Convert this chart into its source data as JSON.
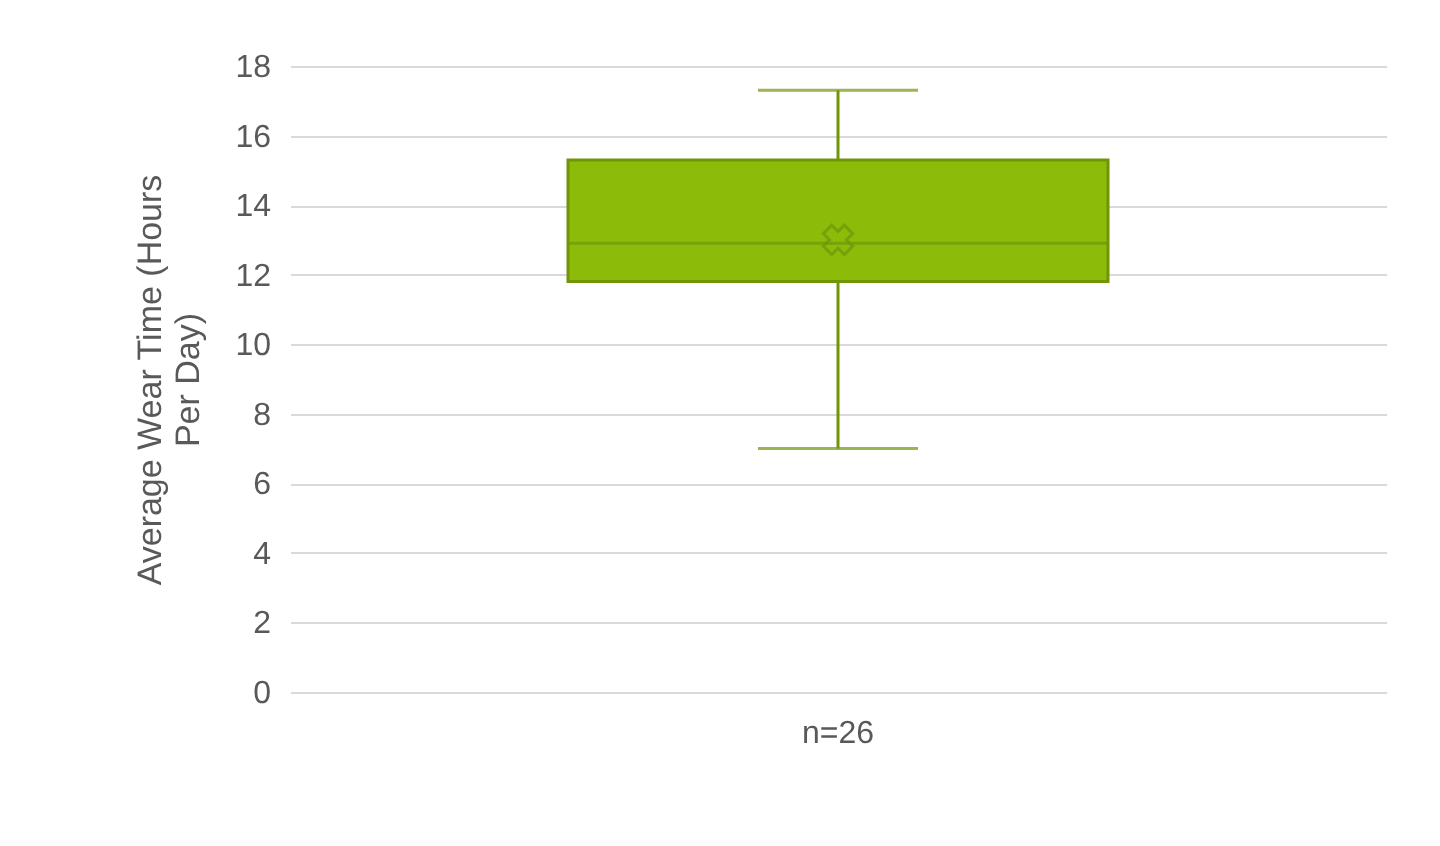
{
  "chart_data": {
    "type": "box",
    "ylabel": "Average Wear Time (Hours Per Day)",
    "categories": [
      "n=26"
    ],
    "series": [
      {
        "color": "#8cbb0a",
        "boxes": [
          {
            "low": 7.0,
            "q1": 11.8,
            "median": 12.9,
            "q3": 15.3,
            "high": 17.3,
            "mean": 13.0
          }
        ]
      }
    ],
    "ylim": [
      0,
      18
    ],
    "yticks": [
      0,
      2,
      4,
      6,
      8,
      10,
      12,
      14,
      16,
      18
    ],
    "grid": "y"
  }
}
